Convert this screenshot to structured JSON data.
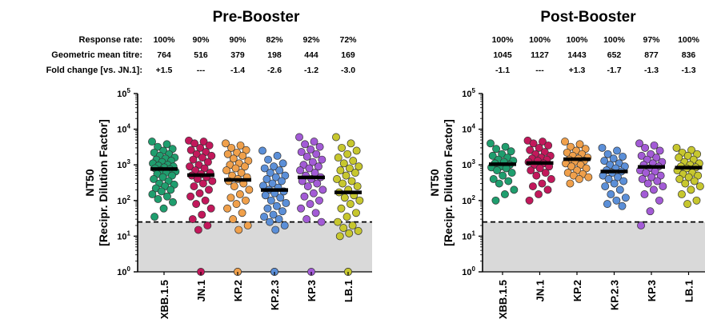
{
  "chart_data": [
    {
      "type": "scatter",
      "title": "Pre-Booster",
      "ylabel": [
        "NT50",
        "[Recipr. Dilution Factor]"
      ],
      "yscale": "log",
      "ylim": [
        1,
        100000
      ],
      "yticks": [
        {
          "base": "10",
          "exp": "0",
          "value": 1
        },
        {
          "base": "10",
          "exp": "1",
          "value": 10
        },
        {
          "base": "10",
          "exp": "2",
          "value": 100
        },
        {
          "base": "10",
          "exp": "3",
          "value": 1000
        },
        {
          "base": "10",
          "exp": "4",
          "value": 10000
        },
        {
          "base": "10",
          "exp": "5",
          "value": 100000
        }
      ],
      "lloq": 25,
      "shaded_below_lloq": true,
      "stat_labels": [
        "Response rate:",
        "Geometric mean titre:",
        "Fold change [vs. JN.1]:"
      ],
      "categories": [
        "XBB.1.5",
        "JN.1",
        "KP.2",
        "KP.2.3",
        "KP.3",
        "LB.1"
      ],
      "colors": [
        "#1f9e6e",
        "#c2185b",
        "#f0a04b",
        "#5b8fd8",
        "#a35bd6",
        "#c7c72e"
      ],
      "response_rate": [
        "100%",
        "90%",
        "90%",
        "82%",
        "92%",
        "72%"
      ],
      "gmt": [
        "764",
        "516",
        "379",
        "198",
        "444",
        "169"
      ],
      "fold_change": [
        "+1.5",
        "---",
        "-1.4",
        "-2.6",
        "-1.2",
        "-3.0"
      ],
      "gmt_values": [
        764,
        516,
        379,
        198,
        444,
        169
      ],
      "series": [
        {
          "name": "XBB.1.5",
          "values": [
            4500,
            3800,
            3200,
            2800,
            2500,
            2200,
            2000,
            1800,
            1600,
            1500,
            1400,
            1300,
            1200,
            1100,
            1000,
            950,
            900,
            850,
            800,
            750,
            700,
            650,
            600,
            550,
            500,
            450,
            400,
            350,
            300,
            280,
            250,
            220,
            200,
            180,
            150,
            130,
            110,
            90,
            60,
            35
          ]
        },
        {
          "name": "JN.1",
          "values": [
            4800,
            4500,
            4000,
            3500,
            3000,
            2600,
            2300,
            2000,
            1800,
            1600,
            1400,
            1200,
            1000,
            900,
            800,
            700,
            600,
            550,
            500,
            450,
            400,
            350,
            300,
            250,
            200,
            160,
            130,
            100,
            80,
            60,
            40,
            30,
            20,
            15,
            1
          ]
        },
        {
          "name": "KP.2",
          "values": [
            4000,
            3500,
            3000,
            2600,
            2200,
            2000,
            1800,
            1500,
            1300,
            1100,
            1000,
            900,
            800,
            700,
            600,
            500,
            450,
            400,
            350,
            300,
            250,
            200,
            150,
            120,
            100,
            80,
            60,
            45,
            30,
            20,
            15,
            1,
            1
          ]
        },
        {
          "name": "KP.2.3",
          "values": [
            2500,
            1800,
            1400,
            1100,
            900,
            800,
            700,
            600,
            500,
            450,
            400,
            350,
            300,
            260,
            230,
            200,
            180,
            160,
            140,
            120,
            100,
            85,
            70,
            60,
            50,
            40,
            35,
            30,
            25,
            20,
            15,
            1,
            1
          ]
        },
        {
          "name": "KP.3",
          "values": [
            6000,
            4500,
            3800,
            3200,
            2700,
            2300,
            2000,
            1700,
            1400,
            1200,
            1000,
            900,
            800,
            700,
            600,
            500,
            450,
            400,
            350,
            300,
            250,
            200,
            160,
            130,
            100,
            80,
            60,
            45,
            30,
            25,
            1
          ]
        },
        {
          "name": "LB.1",
          "values": [
            6000,
            4000,
            3000,
            2500,
            2000,
            1600,
            1300,
            1100,
            900,
            800,
            700,
            600,
            500,
            400,
            350,
            300,
            250,
            200,
            170,
            140,
            120,
            100,
            80,
            60,
            45,
            35,
            25,
            20,
            17,
            14,
            12,
            10,
            1,
            1
          ]
        }
      ]
    },
    {
      "type": "scatter",
      "title": "Post-Booster",
      "ylabel": [
        "NT50",
        "[Recipr. Dilution Factor]"
      ],
      "yscale": "log",
      "ylim": [
        1,
        100000
      ],
      "yticks": [
        {
          "base": "10",
          "exp": "0",
          "value": 1
        },
        {
          "base": "10",
          "exp": "1",
          "value": 10
        },
        {
          "base": "10",
          "exp": "2",
          "value": 100
        },
        {
          "base": "10",
          "exp": "3",
          "value": 1000
        },
        {
          "base": "10",
          "exp": "4",
          "value": 10000
        },
        {
          "base": "10",
          "exp": "5",
          "value": 100000
        }
      ],
      "lloq": 25,
      "shaded_below_lloq": true,
      "categories": [
        "XBB.1.5",
        "JN.1",
        "KP.2",
        "KP.2.3",
        "KP.3",
        "LB.1"
      ],
      "colors": [
        "#1f9e6e",
        "#c2185b",
        "#f0a04b",
        "#5b8fd8",
        "#a35bd6",
        "#c7c72e"
      ],
      "response_rate": [
        "100%",
        "100%",
        "100%",
        "100%",
        "97%",
        "100%"
      ],
      "gmt": [
        "1045",
        "1127",
        "1443",
        "652",
        "877",
        "836"
      ],
      "fold_change": [
        "-1.1",
        "---",
        "+1.3",
        "-1.7",
        "-1.3",
        "-1.3"
      ],
      "gmt_values": [
        1045,
        1127,
        1443,
        652,
        877,
        836
      ],
      "series": [
        {
          "name": "XBB.1.5",
          "values": [
            4000,
            3200,
            2800,
            2400,
            2000,
            1800,
            1600,
            1400,
            1300,
            1200,
            1100,
            1000,
            900,
            850,
            800,
            700,
            600,
            500,
            400,
            350,
            300,
            200,
            150,
            100
          ]
        },
        {
          "name": "JN.1",
          "values": [
            4800,
            4500,
            4000,
            3500,
            3000,
            2600,
            2300,
            2000,
            1800,
            1600,
            1500,
            1400,
            1300,
            1200,
            1100,
            1000,
            900,
            800,
            700,
            600,
            500,
            400,
            300,
            250,
            200,
            150,
            100
          ]
        },
        {
          "name": "KP.2",
          "values": [
            4500,
            3800,
            3200,
            2800,
            2500,
            2200,
            2000,
            1800,
            1600,
            1500,
            1400,
            1300,
            1200,
            1100,
            1000,
            900,
            800,
            700,
            600,
            550,
            500,
            450,
            400,
            300
          ]
        },
        {
          "name": "KP.2.3",
          "values": [
            3000,
            2500,
            2000,
            1700,
            1500,
            1300,
            1100,
            1000,
            900,
            800,
            700,
            650,
            600,
            500,
            450,
            400,
            350,
            300,
            250,
            200,
            150,
            120,
            100,
            80,
            70
          ]
        },
        {
          "name": "KP.3",
          "values": [
            4000,
            3500,
            3000,
            2500,
            2000,
            1800,
            1600,
            1400,
            1200,
            1100,
            1000,
            900,
            800,
            700,
            650,
            600,
            500,
            450,
            400,
            350,
            300,
            250,
            200,
            150,
            100,
            50,
            20
          ]
        },
        {
          "name": "LB.1",
          "values": [
            3000,
            2600,
            2200,
            2000,
            1800,
            1600,
            1400,
            1200,
            1100,
            1000,
            900,
            850,
            800,
            700,
            600,
            550,
            500,
            450,
            400,
            350,
            300,
            250,
            200,
            150,
            100,
            80
          ]
        }
      ]
    }
  ]
}
